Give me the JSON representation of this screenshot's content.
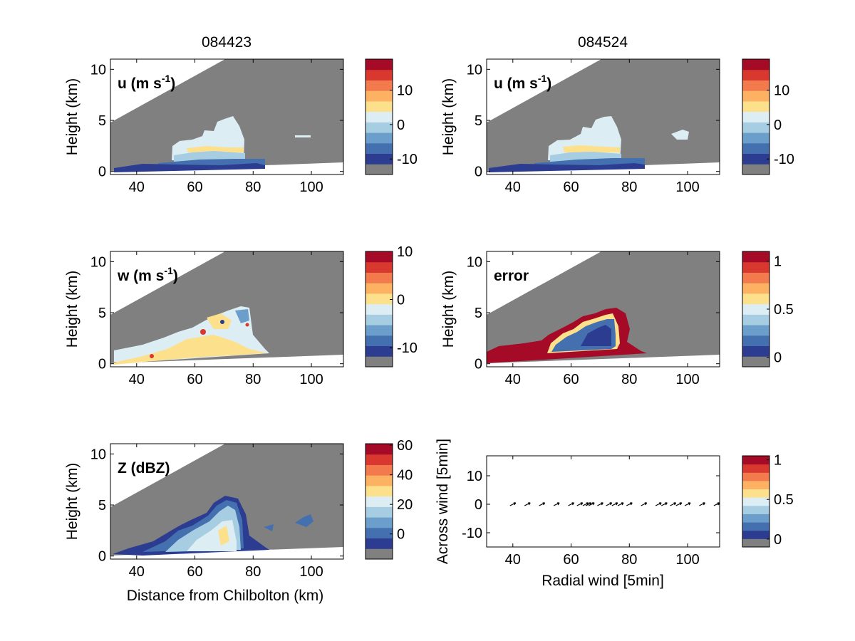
{
  "figure": {
    "column_titles": [
      "084423",
      "084524"
    ],
    "x_axis_label": "Distance from Chilbolton (km)",
    "y_axis_label": "Height (km)",
    "bottom_right_xlabel": "Radial wind [5min]",
    "bottom_right_ylabel": "Across wind [5min]"
  },
  "colors": {
    "scale": [
      "#808080",
      "#2c3c91",
      "#4470b0",
      "#6b9ecb",
      "#a6cde2",
      "#dcedf3",
      "#fde08c",
      "#fcb262",
      "#f27a4c",
      "#d8382e",
      "#a50a26"
    ],
    "out_of_range_gray": "#808080",
    "frame": "#000000"
  },
  "chart_data": [
    {
      "type": "heatmap",
      "label": "u (m s-1)",
      "label_main": "u (m s",
      "label_sup": "-1",
      "label_close": ")",
      "column_title": "084423",
      "xlim": [
        31,
        111
      ],
      "ylim": [
        -0.3,
        11
      ],
      "xticks": [
        "40",
        "60",
        "80",
        "100"
      ],
      "yticks": [
        "0",
        "5",
        "10"
      ],
      "colorbar": {
        "range": [
          -14.5,
          19
        ],
        "ticks": [
          "-10",
          "0",
          "10"
        ]
      }
    },
    {
      "type": "heatmap",
      "label": "u (m s-1)",
      "label_main": "u (m s",
      "label_sup": "-1",
      "label_close": ")",
      "column_title": "084524",
      "xlim": [
        31,
        111
      ],
      "ylim": [
        -0.3,
        11
      ],
      "xticks": [
        "40",
        "60",
        "80",
        "100"
      ],
      "yticks": [
        "0",
        "5",
        "10"
      ],
      "colorbar": {
        "range": [
          -14.5,
          19
        ],
        "ticks": [
          "-10",
          "0",
          "10"
        ]
      }
    },
    {
      "type": "heatmap",
      "label": "w (m s-1)",
      "label_main": "w (m s",
      "label_sup": "-1",
      "label_close": ")",
      "xlim": [
        31,
        111
      ],
      "ylim": [
        -0.3,
        11
      ],
      "xticks": [
        "40",
        "60",
        "80",
        "100"
      ],
      "yticks": [
        "0",
        "5",
        "10"
      ],
      "colorbar": {
        "range": [
          -14,
          10
        ],
        "ticks": [
          "-10",
          "0",
          "10"
        ]
      }
    },
    {
      "type": "heatmap",
      "label": "error",
      "label_main": "error",
      "label_sup": "",
      "label_close": "",
      "xlim": [
        31,
        111
      ],
      "ylim": [
        -0.3,
        11
      ],
      "xticks": [
        "40",
        "60",
        "80",
        "100"
      ],
      "yticks": [
        "0",
        "5",
        "10"
      ],
      "colorbar": {
        "range": [
          -0.1,
          1.1
        ],
        "ticks": [
          "0",
          "0.5",
          "1"
        ]
      }
    },
    {
      "type": "heatmap",
      "label": "Z (dBZ)",
      "label_main": "Z (dBZ)",
      "label_sup": "",
      "label_close": "",
      "xlim": [
        31,
        111
      ],
      "ylim": [
        -0.3,
        11
      ],
      "xticks": [
        "40",
        "60",
        "80",
        "100"
      ],
      "yticks": [
        "0",
        "5",
        "10"
      ],
      "colorbar": {
        "range": [
          -17,
          61
        ],
        "ticks": [
          "0",
          "20",
          "40",
          "60"
        ]
      }
    },
    {
      "type": "scatter",
      "label": "wind vectors",
      "xlim": [
        31,
        111
      ],
      "ylim": [
        -15,
        17
      ],
      "xticks": [
        "40",
        "60",
        "80",
        "100"
      ],
      "yticks": [
        "-10",
        "0",
        "10"
      ],
      "x": [
        40,
        45,
        50,
        55,
        60,
        63,
        65,
        66,
        67,
        70,
        73,
        75,
        77,
        80,
        85,
        90,
        92,
        95,
        97,
        100,
        105,
        110
      ],
      "y": [
        0,
        0,
        0,
        0,
        0,
        0,
        0,
        0,
        0,
        0,
        0,
        0,
        0,
        0,
        0,
        0,
        0,
        0,
        0,
        0,
        0,
        0
      ],
      "colorbar": {
        "range": [
          -0.1,
          1.05
        ],
        "ticks": [
          "0",
          "0.5",
          "1"
        ]
      }
    }
  ]
}
